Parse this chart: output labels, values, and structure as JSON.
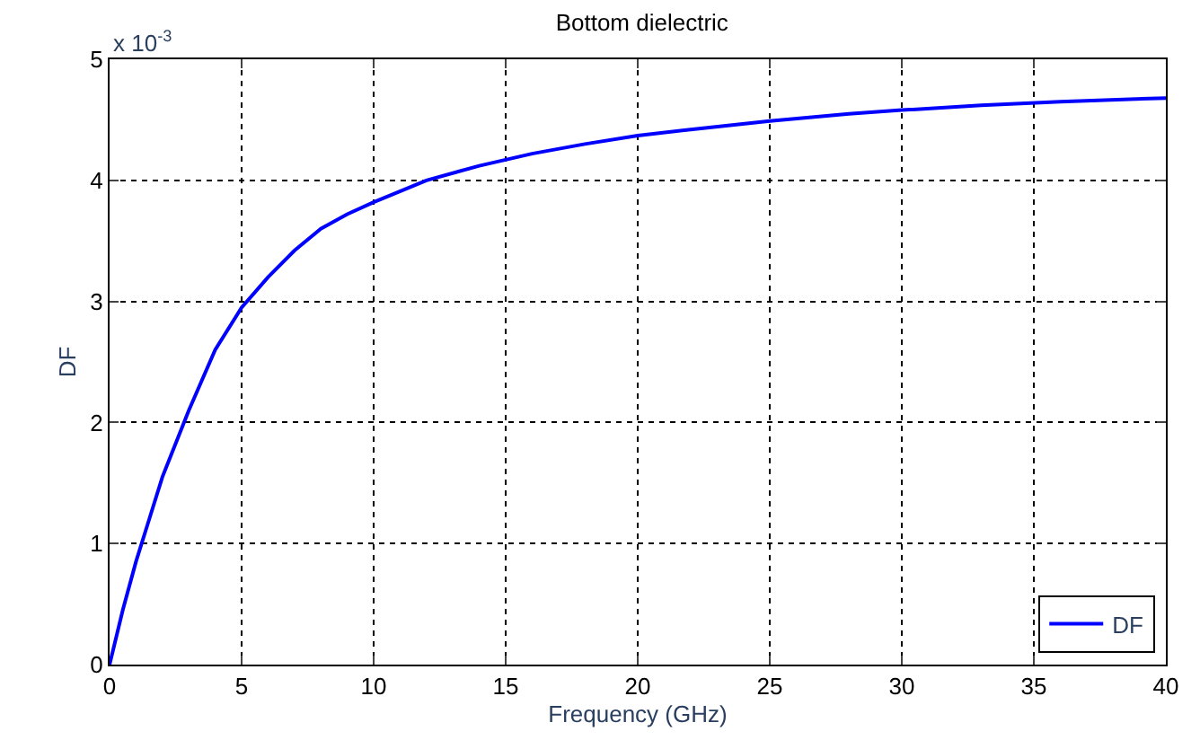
{
  "chart_data": {
    "type": "line",
    "title": "Bottom dielectric",
    "xlabel": "Frequency (GHz)",
    "ylabel": "DF",
    "annotations": [
      "x 10$^{-3}$"
    ],
    "x": [
      0,
      0.5,
      1,
      1.5,
      2,
      3,
      4,
      5,
      6,
      7,
      8,
      9,
      10,
      12,
      14,
      16,
      18,
      20,
      22,
      25,
      28,
      30,
      33,
      36,
      40
    ],
    "series": [
      {
        "name": "DF",
        "color": "#0000ff",
        "values": [
          0,
          0.45,
          0.85,
          1.2,
          1.55,
          2.1,
          2.6,
          2.95,
          3.2,
          3.42,
          3.6,
          3.72,
          3.82,
          4.0,
          4.12,
          4.22,
          4.3,
          4.37,
          4.42,
          4.49,
          4.55,
          4.58,
          4.62,
          4.65,
          4.68
        ]
      }
    ],
    "xlim": [
      0,
      40
    ],
    "xticks": [
      0,
      5,
      10,
      15,
      20,
      25,
      30,
      35,
      40
    ],
    "ylim": [
      0,
      5
    ],
    "yticks": [
      0,
      1,
      2,
      3,
      4,
      5
    ],
    "grid": true,
    "legend": "bottom right",
    "line_style": "solid",
    "marker": "none"
  }
}
